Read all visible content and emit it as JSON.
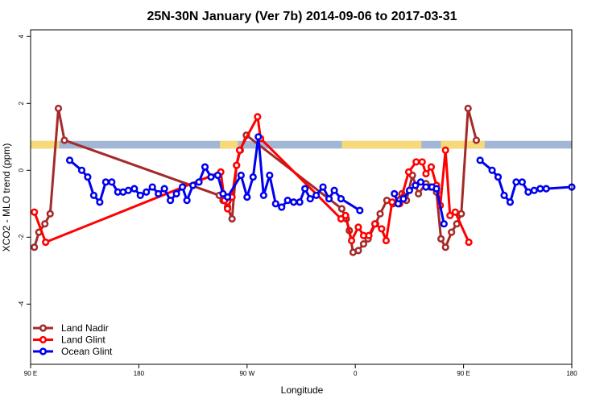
{
  "chart_data": {
    "type": "line",
    "title": "25N-30N January (Ver 7b)   2014-09-06 to 2017-03-31",
    "xlabel": "Longitude",
    "ylabel": "XCO2 - MLO trend (ppm)",
    "xlim": [
      0,
      360
    ],
    "ylim": [
      -5.8,
      4.2
    ],
    "x_ticks": [
      {
        "value": 0,
        "label": "90 E"
      },
      {
        "value": 72,
        "label": "180"
      },
      {
        "value": 144,
        "label": "90 W"
      },
      {
        "value": 216,
        "label": "0"
      },
      {
        "value": 288,
        "label": "90 E"
      },
      {
        "value": 360,
        "label": "180"
      }
    ],
    "y_ticks": [
      {
        "value": 4,
        "label": "4"
      },
      {
        "value": 2,
        "label": "2"
      },
      {
        "value": 0,
        "label": "0"
      },
      {
        "value": -2,
        "label": "-2"
      },
      {
        "value": -4,
        "label": "-4"
      }
    ],
    "land_sea_band": {
      "y_range": [
        0.65,
        0.88
      ],
      "ocean_color": "#a2b6d6",
      "land_color": "#f7d978",
      "land_segments": [
        [
          0,
          19
        ],
        [
          126,
          138
        ],
        [
          207,
          260
        ],
        [
          273,
          302
        ]
      ]
    },
    "legend_position": "bottom-left",
    "series": [
      {
        "name": "Land Nadir",
        "color": "#a52a2a",
        "line": true,
        "points": [
          [
            2.5,
            -2.3
          ],
          [
            5.5,
            -1.85
          ],
          [
            9.5,
            -1.6
          ],
          [
            13,
            -1.3
          ],
          [
            18.5,
            1.85
          ],
          [
            22.5,
            0.9
          ],
          [
            125.5,
            -0.75
          ],
          [
            128,
            -0.9
          ],
          [
            131,
            -1.1
          ],
          [
            134,
            -1.45
          ],
          [
            137,
            0.15
          ],
          [
            139.5,
            0.6
          ],
          [
            143.5,
            1.05
          ],
          [
            207,
            -1.15
          ],
          [
            210,
            -1.45
          ],
          [
            212,
            -1.8
          ],
          [
            214.5,
            -2.45
          ],
          [
            218,
            -2.4
          ],
          [
            221.5,
            -2.2
          ],
          [
            224.5,
            -2.05
          ],
          [
            229.5,
            -1.6
          ],
          [
            232.5,
            -1.3
          ],
          [
            237,
            -0.9
          ],
          [
            241,
            -1.0
          ],
          [
            247,
            -0.7
          ],
          [
            250,
            -0.9
          ],
          [
            254,
            -0.15
          ],
          [
            258,
            -0.7
          ],
          [
            263,
            -0.4
          ],
          [
            266,
            -0.5
          ],
          [
            270,
            -0.65
          ],
          [
            273,
            -2.05
          ],
          [
            276,
            -2.3
          ],
          [
            280,
            -1.85
          ],
          [
            283.5,
            -1.6
          ],
          [
            286.5,
            -1.3
          ],
          [
            291,
            1.85
          ],
          [
            296.5,
            0.9
          ]
        ]
      },
      {
        "name": "Land Glint",
        "color": "#ff0000",
        "line": true,
        "points": [
          [
            2.5,
            -1.25
          ],
          [
            10,
            -2.15
          ],
          [
            126.5,
            -0.05
          ],
          [
            129,
            -0.9
          ],
          [
            131,
            -1.15
          ],
          [
            134,
            -0.8
          ],
          [
            137,
            0.15
          ],
          [
            139,
            0.6
          ],
          [
            151,
            1.6
          ],
          [
            153,
            0.95
          ],
          [
            206.5,
            -1.45
          ],
          [
            209.5,
            -1.35
          ],
          [
            213.5,
            -2.1
          ],
          [
            218,
            -1.7
          ],
          [
            221.5,
            -1.95
          ],
          [
            225,
            -1.95
          ],
          [
            229,
            -1.6
          ],
          [
            233.5,
            -1.75
          ],
          [
            236.5,
            -2.1
          ],
          [
            240.5,
            -0.95
          ],
          [
            245.5,
            -1.0
          ],
          [
            251.5,
            -0.05
          ],
          [
            256.5,
            0.25
          ],
          [
            260.5,
            0.25
          ],
          [
            263,
            -0.1
          ],
          [
            266.5,
            0.1
          ],
          [
            270,
            -0.45
          ],
          [
            272.5,
            -1.05
          ],
          [
            276,
            0.6
          ],
          [
            279,
            -1.35
          ],
          [
            282.5,
            -1.25
          ],
          [
            291.5,
            -2.15
          ]
        ]
      },
      {
        "name": "Ocean Glint",
        "color": "#0000ee",
        "line": true,
        "points": [
          [
            26,
            0.3
          ],
          [
            34,
            0.0
          ],
          [
            38,
            -0.2
          ],
          [
            42,
            -0.75
          ],
          [
            46,
            -0.95
          ],
          [
            50,
            -0.35
          ],
          [
            54,
            -0.35
          ],
          [
            58,
            -0.65
          ],
          [
            61.5,
            -0.65
          ],
          [
            65,
            -0.6
          ],
          [
            69,
            -0.55
          ],
          [
            73,
            -0.75
          ],
          [
            77,
            -0.65
          ],
          [
            81,
            -0.5
          ],
          [
            85,
            -0.7
          ],
          [
            89,
            -0.55
          ],
          [
            93,
            -0.9
          ],
          [
            97,
            -0.7
          ],
          [
            101,
            -0.5
          ],
          [
            104,
            -0.9
          ],
          [
            108,
            -0.45
          ],
          [
            112,
            -0.35
          ],
          [
            116,
            0.1
          ],
          [
            120,
            -0.2
          ],
          [
            124.5,
            -0.15
          ],
          [
            128,
            -0.7
          ],
          [
            131,
            -0.8
          ],
          [
            140,
            -0.15
          ],
          [
            144,
            -0.8
          ],
          [
            148,
            -0.2
          ],
          [
            151.5,
            1.0
          ],
          [
            155,
            -0.75
          ],
          [
            159,
            -0.15
          ],
          [
            163,
            -1.0
          ],
          [
            167,
            -1.1
          ],
          [
            171,
            -0.9
          ],
          [
            175,
            -0.95
          ],
          [
            179,
            -0.95
          ],
          [
            182.5,
            -0.55
          ],
          [
            186,
            -0.85
          ],
          [
            190,
            -0.75
          ],
          [
            194.5,
            -0.5
          ],
          [
            198.5,
            -0.85
          ],
          [
            202,
            -0.6
          ],
          [
            206.5,
            -0.85
          ],
          [
            219,
            -1.2
          ]
        ]
      },
      {
        "name": "Ocean Glint",
        "color": "#0000ee",
        "line": true,
        "points": [
          [
            242,
            -0.7
          ],
          [
            244.5,
            -1.0
          ],
          [
            248,
            -0.85
          ],
          [
            252,
            -0.6
          ],
          [
            256,
            -0.45
          ],
          [
            259.5,
            -0.35
          ],
          [
            263,
            -0.5
          ],
          [
            267,
            -0.5
          ],
          [
            270,
            -0.55
          ],
          [
            275,
            -1.6
          ]
        ]
      },
      {
        "name": "Ocean Glint",
        "color": "#0000ee",
        "line": true,
        "points": [
          [
            299,
            0.3
          ],
          [
            307,
            0.0
          ],
          [
            311,
            -0.2
          ],
          [
            315,
            -0.75
          ],
          [
            319,
            -0.95
          ],
          [
            323,
            -0.35
          ],
          [
            327,
            -0.35
          ],
          [
            331,
            -0.65
          ],
          [
            335,
            -0.6
          ],
          [
            339,
            -0.55
          ],
          [
            343,
            -0.55
          ],
          [
            360,
            -0.5
          ]
        ]
      }
    ]
  }
}
